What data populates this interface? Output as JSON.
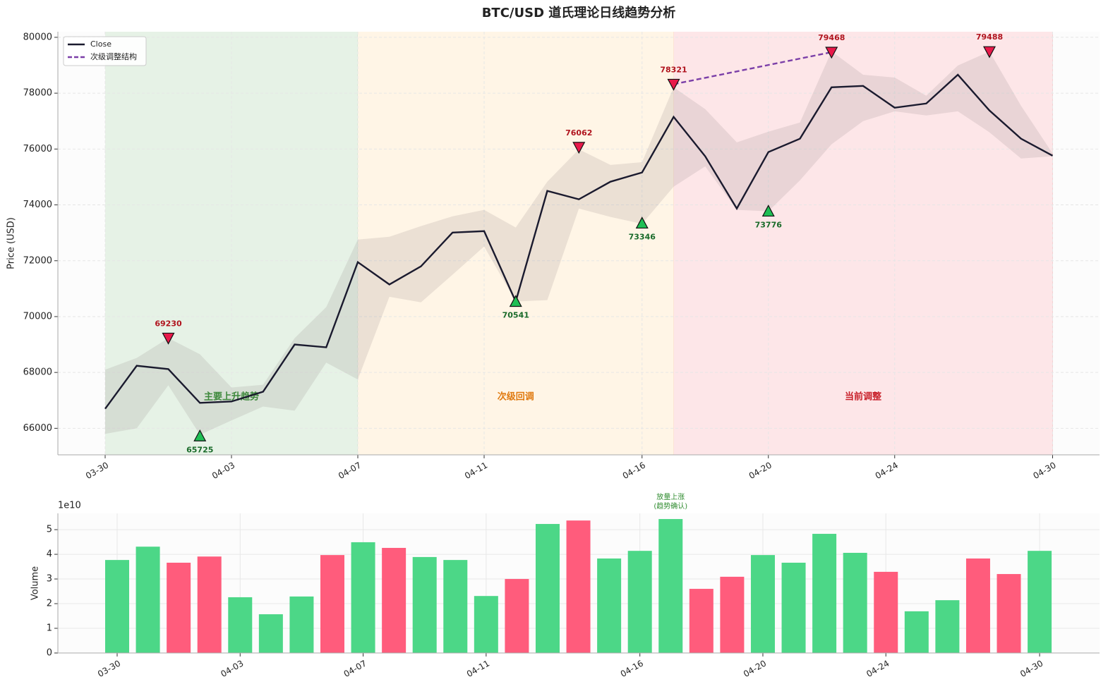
{
  "chart_data": [
    {
      "type": "line",
      "title": "BTC/USD 道氏理论日线趋势分析",
      "ylabel": "Price (USD)",
      "categories": [
        "03-30",
        "03-31",
        "04-01",
        "04-02",
        "04-03",
        "04-04",
        "04-05",
        "04-06",
        "04-07",
        "04-08",
        "04-09",
        "04-10",
        "04-11",
        "04-12",
        "04-13",
        "04-14",
        "04-15",
        "04-16",
        "04-17",
        "04-18",
        "04-19",
        "04-20",
        "04-21",
        "04-22",
        "04-23",
        "04-24",
        "04-26",
        "04-27",
        "04-28",
        "04-29",
        "04-30"
      ],
      "series": [
        {
          "name": "Close",
          "color": "#1a1a2e",
          "values": [
            66700,
            68240,
            68120,
            66910,
            66960,
            67310,
            69000,
            68900,
            71950,
            71150,
            71800,
            73010,
            73060,
            70540,
            74500,
            74200,
            74830,
            75160,
            77150,
            75740,
            73870,
            75890,
            76370,
            78210,
            78260,
            77480,
            77630,
            78660,
            77380,
            76370,
            75760
          ]
        }
      ],
      "band": {
        "color": "#8a7a7a",
        "upper": [
          68100,
          68520,
          69230,
          68650,
          67460,
          67560,
          69230,
          70340,
          72760,
          72860,
          73240,
          73590,
          73820,
          73190,
          74830,
          75990,
          75430,
          75530,
          78210,
          77430,
          76240,
          76620,
          76950,
          79500,
          78660,
          78560,
          77910,
          78990,
          79490,
          77550,
          75840
        ],
        "lower": [
          65800,
          66000,
          67540,
          65770,
          66280,
          66780,
          66630,
          68350,
          67750,
          70710,
          70510,
          71500,
          72510,
          70540,
          70590,
          73870,
          73570,
          73320,
          74650,
          75380,
          73820,
          73770,
          74880,
          76170,
          77000,
          77350,
          77200,
          77350,
          76600,
          75660,
          75740
        ]
      },
      "structure": {
        "name": "次级调整结构",
        "color": "#7b3fa8",
        "x": [
          "04-17",
          "04-22"
        ],
        "values": [
          78321,
          79468
        ]
      },
      "highs": {
        "color": "#e8194a",
        "label_color": "#b0141e",
        "x": [
          "04-01",
          "04-14",
          "04-17",
          "04-22",
          "04-28"
        ],
        "values": [
          69230,
          76062,
          78321,
          79468,
          79488
        ]
      },
      "lows": {
        "color": "#1fbf55",
        "label_color": "#1a6b2a",
        "x": [
          "04-02",
          "04-12",
          "04-16",
          "04-20"
        ],
        "values": [
          65725,
          70541,
          73346,
          73776
        ]
      },
      "phases": [
        {
          "label": "主要上升趋势",
          "start": "03-30",
          "end": "04-07",
          "color": "#e6f2e6",
          "text_color": "#2e8b2e"
        },
        {
          "label": "次级回调",
          "start": "04-07",
          "end": "04-17",
          "color": "#fff5e6",
          "text_color": "#e07a10"
        },
        {
          "label": "当前调整",
          "start": "04-17",
          "end": "04-30",
          "color": "#fde6e8",
          "text_color": "#c8202a"
        }
      ],
      "xticks": [
        "03-30",
        "04-03",
        "04-07",
        "04-11",
        "04-16",
        "04-20",
        "04-24",
        "04-30"
      ],
      "ylim": [
        65050,
        80200
      ],
      "yticks": [
        66000,
        68000,
        70000,
        72000,
        74000,
        76000,
        78000,
        80000
      ],
      "grid": true,
      "legend": "upper left"
    },
    {
      "type": "bar",
      "ylabel": "Volume",
      "offset_label": "1e10",
      "categories": [
        "03-30",
        "03-31",
        "04-01",
        "04-02",
        "04-03",
        "04-04",
        "04-05",
        "04-06",
        "04-07",
        "04-08",
        "04-09",
        "04-10",
        "04-11",
        "04-12",
        "04-13",
        "04-14",
        "04-15",
        "04-16",
        "04-17",
        "04-18",
        "04-19",
        "04-20",
        "04-21",
        "04-22",
        "04-23",
        "04-24",
        "04-26",
        "04-27",
        "04-28",
        "04-29",
        "04-30"
      ],
      "values": [
        3.77,
        4.31,
        3.66,
        3.91,
        2.26,
        1.57,
        2.29,
        3.97,
        4.49,
        4.26,
        3.89,
        3.77,
        2.31,
        3.0,
        5.23,
        5.37,
        3.83,
        4.14,
        5.43,
        2.6,
        3.09,
        3.97,
        3.66,
        4.83,
        4.06,
        3.29,
        1.69,
        2.14,
        3.83,
        3.2,
        4.14
      ],
      "colors": [
        "#4cd787",
        "#4cd787",
        "#ff5c7c",
        "#ff5c7c",
        "#4cd787",
        "#4cd787",
        "#4cd787",
        "#ff5c7c",
        "#4cd787",
        "#ff5c7c",
        "#4cd787",
        "#4cd787",
        "#4cd787",
        "#ff5c7c",
        "#4cd787",
        "#ff5c7c",
        "#4cd787",
        "#4cd787",
        "#4cd787",
        "#ff5c7c",
        "#ff5c7c",
        "#4cd787",
        "#4cd787",
        "#4cd787",
        "#4cd787",
        "#ff5c7c",
        "#4cd787",
        "#4cd787",
        "#ff5c7c",
        "#ff5c7c",
        "#4cd787"
      ],
      "annotation": {
        "lines": [
          "放量上涨",
          "(趋势确认)"
        ],
        "x": "04-17",
        "color": "#2e8b2e"
      },
      "xticks": [
        "03-30",
        "04-03",
        "04-07",
        "04-11",
        "04-16",
        "04-20",
        "04-24",
        "04-30"
      ],
      "ylim": [
        0,
        5.66
      ],
      "yticks": [
        0,
        1,
        2,
        3,
        4,
        5
      ],
      "grid": true
    }
  ]
}
